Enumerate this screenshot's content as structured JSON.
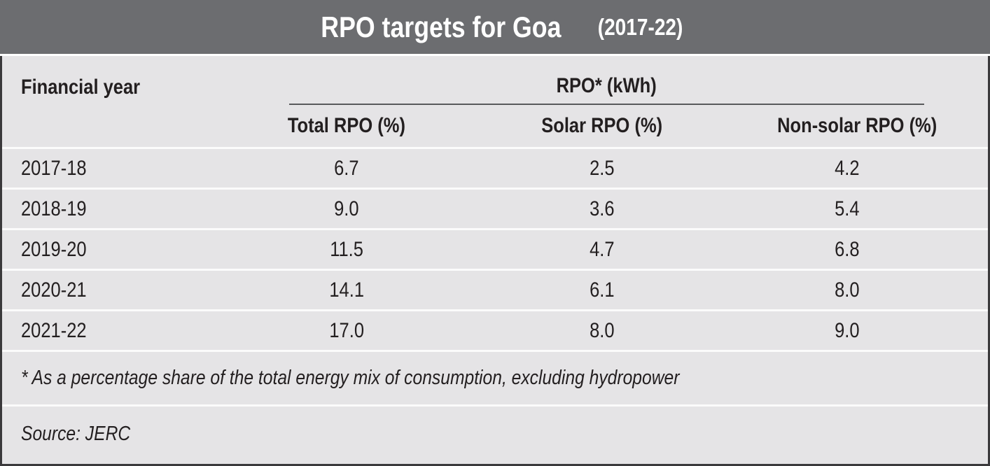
{
  "title": {
    "main": "RPO targets for Goa",
    "suffix": "(2017-22)"
  },
  "table": {
    "row_header_label": "Financial year",
    "group_header": "RPO* (kWh)",
    "columns": [
      "Total RPO (%)",
      "Solar RPO (%)",
      "Non-solar RPO (%)"
    ],
    "rows": [
      {
        "year": "2017-18",
        "total": "6.7",
        "solar": "2.5",
        "non_solar": "4.2"
      },
      {
        "year": "2018-19",
        "total": "9.0",
        "solar": "3.6",
        "non_solar": "5.4"
      },
      {
        "year": "2019-20",
        "total": "11.5",
        "solar": "4.7",
        "non_solar": "6.8"
      },
      {
        "year": "2020-21",
        "total": "14.1",
        "solar": "6.1",
        "non_solar": "8.0"
      },
      {
        "year": "2021-22",
        "total": "17.0",
        "solar": "8.0",
        "non_solar": "9.0"
      }
    ]
  },
  "footnote": "* As a percentage share of the total energy mix of consumption, excluding hydropower",
  "source": "Source: JERC",
  "colors": {
    "title_bar_bg": "#6c6d70",
    "title_text": "#ffffff",
    "panel_bg": "#e5e4e6",
    "outer_border": "#3a393b",
    "group_rule": "#58595b",
    "row_separator": "#fbfbfb",
    "text": "#231f20"
  },
  "chart_data": {
    "type": "table",
    "title": "RPO targets for Goa (2017-22)",
    "group_header": "RPO* (kWh)",
    "columns": [
      "Financial year",
      "Total RPO (%)",
      "Solar RPO (%)",
      "Non-solar RPO (%)"
    ],
    "rows": [
      [
        "2017-18",
        6.7,
        2.5,
        4.2
      ],
      [
        "2018-19",
        9.0,
        3.6,
        5.4
      ],
      [
        "2019-20",
        11.5,
        4.7,
        6.8
      ],
      [
        "2020-21",
        14.1,
        6.1,
        8.0
      ],
      [
        "2021-22",
        17.0,
        8.0,
        9.0
      ]
    ],
    "footnote": "* As a percentage share of the total energy mix of consumption, excluding hydropower",
    "source": "Source: JERC"
  }
}
